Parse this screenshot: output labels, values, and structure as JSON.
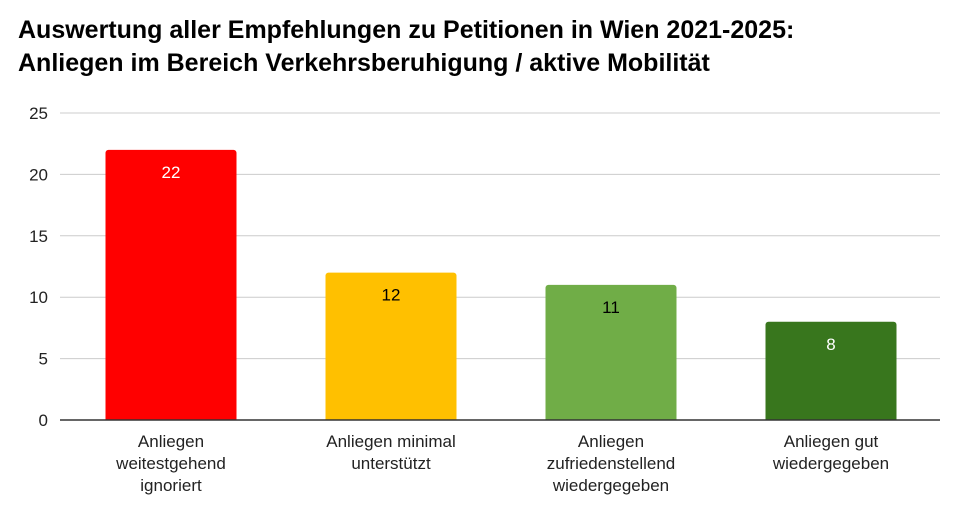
{
  "chart_data": {
    "type": "bar",
    "title_lines": [
      "Auswertung aller Empfehlungen zu Petitionen in Wien 2021-2025:",
      "Anliegen im Bereich Verkehrsberuhigung / aktive Mobilität"
    ],
    "categories": [
      [
        "Anliegen",
        "weitestgehend",
        "ignoriert"
      ],
      [
        "Anliegen minimal",
        "unterstützt"
      ],
      [
        "Anliegen",
        "zufriedenstellend",
        "wiedergegeben"
      ],
      [
        "Anliegen gut",
        "wiedergegeben"
      ]
    ],
    "values": [
      22,
      12,
      11,
      8
    ],
    "colors": [
      "#ff0000",
      "#ffc000",
      "#70ad47",
      "#38761d"
    ],
    "label_colors": [
      "#ffffff",
      "#000000",
      "#000000",
      "#ffffff"
    ],
    "ylim": [
      0,
      25
    ],
    "yticks": [
      0,
      5,
      10,
      15,
      20,
      25
    ],
    "xlabel": "",
    "ylabel": "",
    "grid": true,
    "legend": "none"
  }
}
